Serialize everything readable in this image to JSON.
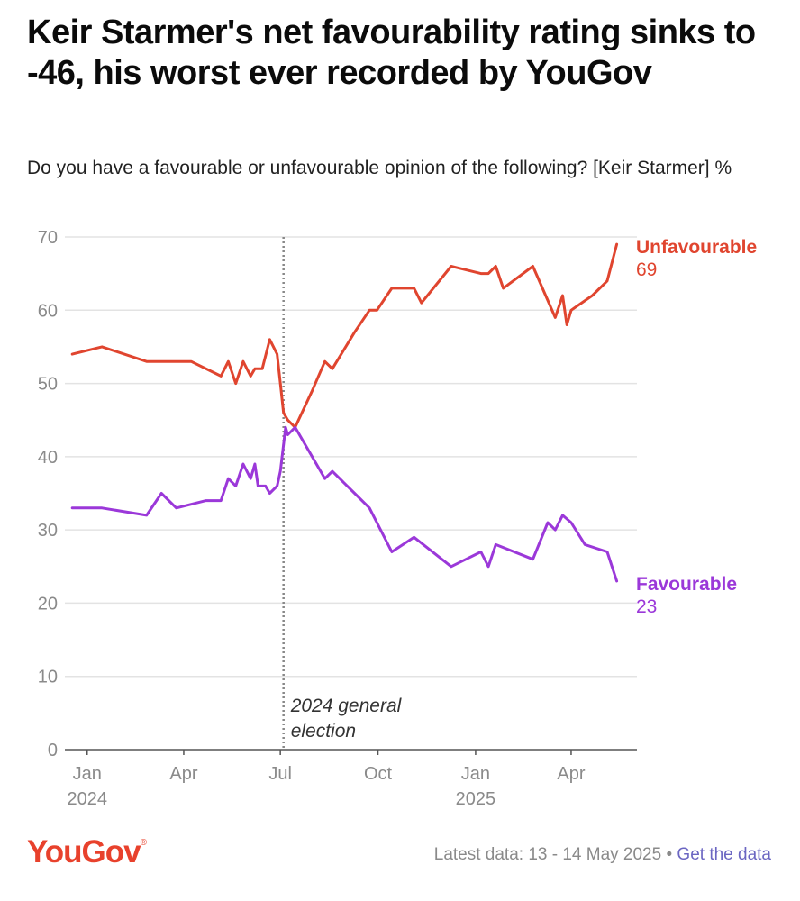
{
  "header": {
    "title": "Keir Starmer's net favourability rating sinks to -46, his worst ever recorded by YouGov",
    "subtitle": "Do you have a favourable or unfavourable opinion of the following? [Keir Starmer] %"
  },
  "footer": {
    "logo": "YouGov",
    "latest_data": "Latest data: 13 - 14 May 2025",
    "separator": " • ",
    "link_label": "Get the data"
  },
  "colors": {
    "unfavourable": "#e0452f",
    "favourable": "#9b38d9",
    "grid": "#e3e3e3",
    "axis": "#555555",
    "annotation_line": "#888888"
  },
  "chart_data": {
    "type": "line",
    "ylim": [
      0,
      70
    ],
    "yticks": [
      0,
      10,
      20,
      30,
      40,
      50,
      60,
      70
    ],
    "xlim": [
      "2023-12-11",
      "2025-06-02"
    ],
    "xticks": [
      {
        "date": "2024-01-01",
        "label": "Jan",
        "sublabel": "2024"
      },
      {
        "date": "2024-04-01",
        "label": "Apr",
        "sublabel": ""
      },
      {
        "date": "2024-07-01",
        "label": "Jul",
        "sublabel": ""
      },
      {
        "date": "2024-10-01",
        "label": "Oct",
        "sublabel": ""
      },
      {
        "date": "2025-01-01",
        "label": "Jan",
        "sublabel": "2025"
      },
      {
        "date": "2025-04-01",
        "label": "Apr",
        "sublabel": ""
      }
    ],
    "annotation": {
      "date": "2024-07-04",
      "line1": "2024 general",
      "line2": "election"
    },
    "series": [
      {
        "name": "Unfavourable",
        "key": "unfavourable",
        "last_value": "69",
        "points": [
          [
            "2023-12-18",
            54
          ],
          [
            "2024-01-15",
            55
          ],
          [
            "2024-02-26",
            53
          ],
          [
            "2024-03-25",
            53
          ],
          [
            "2024-04-08",
            53
          ],
          [
            "2024-05-06",
            51
          ],
          [
            "2024-05-13",
            53
          ],
          [
            "2024-05-20",
            50
          ],
          [
            "2024-05-27",
            53
          ],
          [
            "2024-06-03",
            51
          ],
          [
            "2024-06-07",
            52
          ],
          [
            "2024-06-14",
            52
          ],
          [
            "2024-06-21",
            56
          ],
          [
            "2024-06-28",
            54
          ],
          [
            "2024-07-01",
            50
          ],
          [
            "2024-07-04",
            46
          ],
          [
            "2024-07-08",
            45
          ],
          [
            "2024-07-15",
            44
          ],
          [
            "2024-07-31",
            49
          ],
          [
            "2024-08-12",
            53
          ],
          [
            "2024-08-19",
            52
          ],
          [
            "2024-09-09",
            57
          ],
          [
            "2024-09-23",
            60
          ],
          [
            "2024-09-30",
            60
          ],
          [
            "2024-10-14",
            63
          ],
          [
            "2024-11-04",
            63
          ],
          [
            "2024-11-11",
            61
          ],
          [
            "2024-12-09",
            66
          ],
          [
            "2025-01-06",
            65
          ],
          [
            "2025-01-13",
            65
          ],
          [
            "2025-01-20",
            66
          ],
          [
            "2025-01-27",
            63
          ],
          [
            "2025-02-24",
            66
          ],
          [
            "2025-03-17",
            59
          ],
          [
            "2025-03-24",
            62
          ],
          [
            "2025-03-28",
            58
          ],
          [
            "2025-04-01",
            60
          ],
          [
            "2025-04-21",
            62
          ],
          [
            "2025-05-05",
            64
          ],
          [
            "2025-05-14",
            69
          ]
        ]
      },
      {
        "name": "Favourable",
        "key": "favourable",
        "last_value": "23",
        "points": [
          [
            "2023-12-18",
            33
          ],
          [
            "2024-01-15",
            33
          ],
          [
            "2024-02-26",
            32
          ],
          [
            "2024-03-11",
            35
          ],
          [
            "2024-03-25",
            33
          ],
          [
            "2024-04-22",
            34
          ],
          [
            "2024-05-06",
            34
          ],
          [
            "2024-05-13",
            37
          ],
          [
            "2024-05-20",
            36
          ],
          [
            "2024-05-27",
            39
          ],
          [
            "2024-06-03",
            37
          ],
          [
            "2024-06-07",
            39
          ],
          [
            "2024-06-10",
            36
          ],
          [
            "2024-06-17",
            36
          ],
          [
            "2024-06-21",
            35
          ],
          [
            "2024-06-28",
            36
          ],
          [
            "2024-07-01",
            38
          ],
          [
            "2024-07-06",
            44
          ],
          [
            "2024-07-08",
            43
          ],
          [
            "2024-07-15",
            44
          ],
          [
            "2024-07-31",
            40
          ],
          [
            "2024-08-12",
            37
          ],
          [
            "2024-08-19",
            38
          ],
          [
            "2024-09-09",
            35
          ],
          [
            "2024-09-23",
            33
          ],
          [
            "2024-10-14",
            27
          ],
          [
            "2024-11-04",
            29
          ],
          [
            "2024-12-09",
            25
          ],
          [
            "2025-01-06",
            27
          ],
          [
            "2025-01-13",
            25
          ],
          [
            "2025-01-20",
            28
          ],
          [
            "2025-02-24",
            26
          ],
          [
            "2025-03-10",
            31
          ],
          [
            "2025-03-17",
            30
          ],
          [
            "2025-03-24",
            32
          ],
          [
            "2025-04-01",
            31
          ],
          [
            "2025-04-14",
            28
          ],
          [
            "2025-05-05",
            27
          ],
          [
            "2025-05-14",
            23
          ]
        ]
      }
    ]
  }
}
